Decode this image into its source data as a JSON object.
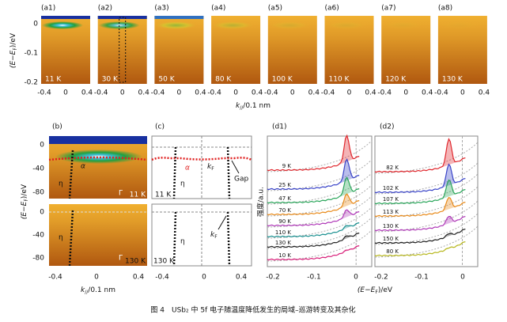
{
  "top_row": {
    "panels": [
      {
        "label": "(a1)",
        "temperature": "11 K"
      },
      {
        "label": "(a2)",
        "temperature": "30 K"
      },
      {
        "label": "(a3)",
        "temperature": "50 K"
      },
      {
        "label": "(a4)",
        "temperature": "80 K"
      },
      {
        "label": "(a5)",
        "temperature": "100 K"
      },
      {
        "label": "(a6)",
        "temperature": "110 K"
      },
      {
        "label": "(a7)",
        "temperature": "120 K"
      },
      {
        "label": "(a8)",
        "temperature": "130 K"
      }
    ],
    "y_axis_label": [
      "(E−E",
      "F",
      ")/eV"
    ],
    "y_ticks": [
      "0",
      "-0.1",
      "-0.2"
    ],
    "x_ticks": [
      "-0.4",
      "0",
      "0.4"
    ],
    "x_axis_label": [
      "k",
      "//",
      "/0.1 nm"
    ]
  },
  "panel_b": {
    "label": "(b)",
    "y_axis_label": [
      "(E−E",
      "F",
      ")/eV"
    ],
    "y_ticks": [
      "0",
      "-40",
      "-80"
    ],
    "x_ticks": [
      "-0.4",
      "0",
      "0.4"
    ],
    "x_axis_label": [
      "k",
      "//",
      "/0.1 nm"
    ],
    "alpha": "α",
    "eta": "η",
    "gamma": "Γ",
    "upper_temperature": "11 K",
    "lower_temperature": "130 K"
  },
  "panel_c": {
    "label": "(c)",
    "x_ticks": [
      "-0.4",
      "0",
      "0.4"
    ],
    "alpha": "α",
    "eta": "η",
    "kf": [
      "k",
      "F"
    ],
    "gap": "Gap",
    "upper_temperature": "11 K",
    "lower_temperature": "130 K"
  },
  "panel_d1": {
    "label": "(d1)",
    "y_axis_label": "强度/a.u.",
    "x_ticks": [
      "-0.2",
      "-0.1",
      "0"
    ],
    "curves": [
      {
        "name": "9 K",
        "color": "#e0282e"
      },
      {
        "name": "25 K",
        "color": "#3a44c8"
      },
      {
        "name": "47 K",
        "color": "#2aa55a"
      },
      {
        "name": "70 K",
        "color": "#e88a1a"
      },
      {
        "name": "90 K",
        "color": "#b03ab8"
      },
      {
        "name": "110 K",
        "color": "#1a9090"
      },
      {
        "name": "130 K",
        "color": "#222222"
      },
      {
        "name": "10 K",
        "color": "#d8207a"
      }
    ]
  },
  "panel_d2": {
    "label": "(d2)",
    "x_ticks": [
      "-0.2",
      "-0.1",
      "0"
    ],
    "x_axis_label": [
      "(E−E",
      "F",
      ")/eV"
    ],
    "curves": [
      {
        "name": "82 K",
        "color": "#e0282e"
      },
      {
        "name": "102 K",
        "color": "#3a44c8"
      },
      {
        "name": "107 K",
        "color": "#2aa55a"
      },
      {
        "name": "113 K",
        "color": "#e88a1a"
      },
      {
        "name": "130 K",
        "color": "#b03ab8"
      },
      {
        "name": "150 K",
        "color": "#222222"
      },
      {
        "name": "80 K",
        "color": "#b8b820"
      }
    ]
  },
  "caption": "图 4　USb₂ 中 5f 电子随温度降低发生的局域–巡游转变及其杂化"
}
